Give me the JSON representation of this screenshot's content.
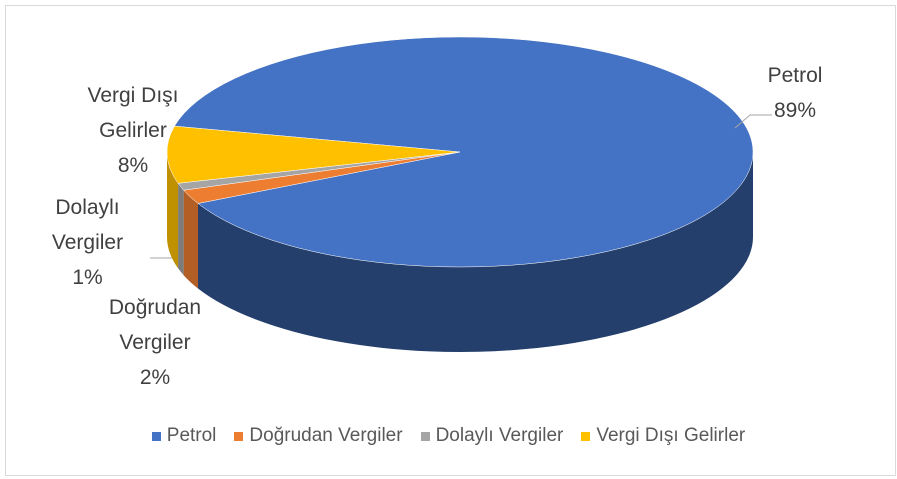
{
  "chart_data": {
    "type": "pie",
    "categories": [
      "Petrol",
      "Doğrudan Vergiler",
      "Dolaylı Vergiler",
      "Vergi Dışı Gelirler"
    ],
    "values": [
      89,
      2,
      1,
      8
    ],
    "value_labels": [
      "89%",
      "2%",
      "1%",
      "8%"
    ],
    "colors": [
      "#4472c4",
      "#ed7d31",
      "#a5a5a5",
      "#ffc000"
    ],
    "legend": "bottom"
  }
}
